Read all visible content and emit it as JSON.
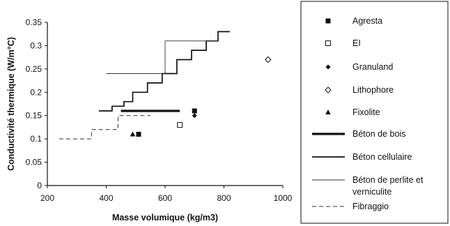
{
  "chart_data": {
    "type": "scatter",
    "xlabel": "Masse volumique (kg/m3)",
    "ylabel": "Conductivité thermique (W/m°C)",
    "xlim": [
      200,
      1000
    ],
    "ylim": [
      0,
      0.35
    ],
    "xticks": [
      "200",
      "400",
      "600",
      "800",
      "1000"
    ],
    "yticks": [
      "0",
      "0.05",
      "0.1",
      "0.15",
      "0.2",
      "0.25",
      "0.3",
      "0.35"
    ],
    "legend_position": "right",
    "scatter_series": [
      {
        "name": "Agresta",
        "marker": "filled-square",
        "points": [
          [
            510,
            0.11
          ],
          [
            700,
            0.16
          ]
        ]
      },
      {
        "name": "EI",
        "marker": "open-square",
        "points": [
          [
            650,
            0.13
          ]
        ]
      },
      {
        "name": "Granuland",
        "marker": "filled-diamond",
        "points": [
          [
            700,
            0.15
          ]
        ]
      },
      {
        "name": "Lithophore",
        "marker": "open-diamond",
        "points": [
          [
            950,
            0.27
          ]
        ]
      },
      {
        "name": "Fixolite",
        "marker": "filled-triangle",
        "points": [
          [
            490,
            0.11
          ]
        ]
      }
    ],
    "line_series": [
      {
        "name": "Béton de bois",
        "style": "thick",
        "points": [
          [
            450,
            0.16
          ],
          [
            650,
            0.16
          ]
        ]
      },
      {
        "name": "Béton cellulaire",
        "style": "medium",
        "points": [
          [
            375,
            0.16
          ],
          [
            420,
            0.16
          ],
          [
            420,
            0.17
          ],
          [
            460,
            0.17
          ],
          [
            460,
            0.18
          ],
          [
            490,
            0.18
          ],
          [
            490,
            0.2
          ],
          [
            540,
            0.2
          ],
          [
            540,
            0.22
          ],
          [
            590,
            0.22
          ],
          [
            590,
            0.24
          ],
          [
            640,
            0.24
          ],
          [
            640,
            0.27
          ],
          [
            690,
            0.27
          ],
          [
            690,
            0.29
          ],
          [
            740,
            0.29
          ],
          [
            740,
            0.31
          ],
          [
            780,
            0.31
          ],
          [
            780,
            0.33
          ],
          [
            820,
            0.33
          ]
        ]
      },
      {
        "name": "Béton de perlite et vermiculite",
        "style": "thin",
        "points": [
          [
            400,
            0.24
          ],
          [
            600,
            0.24
          ],
          [
            600,
            0.31
          ],
          [
            780,
            0.31
          ]
        ]
      },
      {
        "name": "Fibraggio",
        "style": "dashed",
        "points": [
          [
            240,
            0.1
          ],
          [
            350,
            0.1
          ],
          [
            350,
            0.12
          ],
          [
            440,
            0.12
          ],
          [
            440,
            0.15
          ],
          [
            550,
            0.15
          ]
        ]
      }
    ],
    "legend": [
      {
        "label": "Agresta",
        "symbol": "filled-square"
      },
      {
        "label": "EI",
        "symbol": "open-square"
      },
      {
        "label": "Granuland",
        "symbol": "filled-diamond"
      },
      {
        "label": "Lithophore",
        "symbol": "open-diamond"
      },
      {
        "label": "Fixolite",
        "symbol": "filled-triangle"
      },
      {
        "label": "Béton de bois",
        "symbol": "thick"
      },
      {
        "label": "Béton cellulaire",
        "symbol": "medium"
      },
      {
        "label": "Béton de perlite et",
        "label2": "verniculite",
        "symbol": "thin"
      },
      {
        "label": "Fibraggio",
        "symbol": "dashed"
      }
    ]
  }
}
